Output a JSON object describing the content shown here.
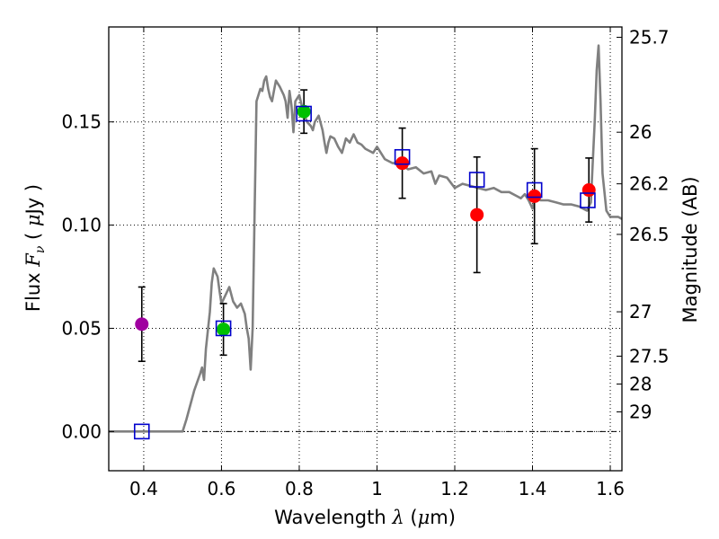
{
  "chart_data": {
    "type": "line",
    "title": "",
    "xlabel": "Wavelength",
    "xlabel_symbol": "λ",
    "xlabel_unit_open": "(",
    "xlabel_unit_mu": "μ",
    "xlabel_unit_rest": "m)",
    "ylabel": "Flux",
    "ylabel_symbol_main": "F",
    "ylabel_symbol_sub": "ν",
    "ylabel_unit_open": "(",
    "ylabel_unit_mu": "μ",
    "ylabel_unit_rest": "Jy",
    "ylabel_unit_close": ")",
    "right_ylabel": "Magnitude (AB)",
    "xlim": [
      0.31,
      1.63
    ],
    "ylim": [
      -0.019,
      0.196
    ],
    "grid": true,
    "x_ticks": [
      0.4,
      0.6,
      0.8,
      1.0,
      1.2,
      1.4,
      1.6
    ],
    "x_tick_labels": [
      "0.4",
      "0.6",
      "0.8",
      "1",
      "1.2",
      "1.4",
      "1.6"
    ],
    "y_ticks": [
      0.0,
      0.05,
      0.1,
      0.15
    ],
    "y_tick_labels": [
      "0.00",
      "0.05",
      "0.10",
      "0.15"
    ],
    "right_ticks": [
      {
        "flux": 0.191,
        "label": "25.7"
      },
      {
        "flux": 0.145,
        "label": "26"
      },
      {
        "flux": 0.12,
        "label": "26.2"
      },
      {
        "flux": 0.0955,
        "label": "26.5"
      },
      {
        "flux": 0.058,
        "label": "27"
      },
      {
        "flux": 0.0365,
        "label": "27.5"
      },
      {
        "flux": 0.023,
        "label": "28"
      },
      {
        "flux": 0.0095,
        "label": "29"
      }
    ],
    "zero_line": 0.0,
    "colors": {
      "model": "#808080",
      "model_bands": "#0000cc",
      "violet": "#a000a0",
      "green": "#00c000",
      "red": "#ff0000",
      "errorbar": "#000000"
    },
    "model_spectrum": {
      "x": [
        0.31,
        0.5,
        0.51,
        0.53,
        0.545,
        0.55,
        0.555,
        0.56,
        0.57,
        0.575,
        0.58,
        0.59,
        0.595,
        0.6,
        0.61,
        0.62,
        0.63,
        0.64,
        0.65,
        0.66,
        0.665,
        0.67,
        0.675,
        0.68,
        0.69,
        0.7,
        0.705,
        0.71,
        0.715,
        0.72,
        0.725,
        0.73,
        0.735,
        0.74,
        0.75,
        0.76,
        0.765,
        0.77,
        0.775,
        0.78,
        0.785,
        0.79,
        0.8,
        0.81,
        0.82,
        0.83,
        0.835,
        0.84,
        0.85,
        0.86,
        0.865,
        0.87,
        0.875,
        0.88,
        0.89,
        0.9,
        0.91,
        0.92,
        0.93,
        0.94,
        0.95,
        0.96,
        0.97,
        0.98,
        0.99,
        1.0,
        1.02,
        1.04,
        1.06,
        1.08,
        1.1,
        1.12,
        1.14,
        1.15,
        1.16,
        1.18,
        1.2,
        1.22,
        1.24,
        1.26,
        1.28,
        1.3,
        1.32,
        1.34,
        1.36,
        1.37,
        1.38,
        1.39,
        1.4,
        1.41,
        1.42,
        1.44,
        1.46,
        1.48,
        1.5,
        1.52,
        1.53,
        1.54,
        1.55,
        1.56,
        1.565,
        1.57,
        1.575,
        1.58,
        1.59,
        1.6,
        1.62,
        1.63
      ],
      "y": [
        0.0,
        0.0,
        0.006,
        0.02,
        0.028,
        0.031,
        0.025,
        0.04,
        0.058,
        0.072,
        0.079,
        0.075,
        0.068,
        0.062,
        0.066,
        0.07,
        0.063,
        0.06,
        0.062,
        0.057,
        0.05,
        0.045,
        0.03,
        0.05,
        0.16,
        0.166,
        0.165,
        0.17,
        0.172,
        0.166,
        0.162,
        0.16,
        0.165,
        0.17,
        0.167,
        0.163,
        0.16,
        0.152,
        0.165,
        0.158,
        0.145,
        0.16,
        0.163,
        0.155,
        0.15,
        0.148,
        0.146,
        0.15,
        0.153,
        0.146,
        0.14,
        0.135,
        0.14,
        0.143,
        0.142,
        0.138,
        0.135,
        0.142,
        0.14,
        0.144,
        0.14,
        0.139,
        0.137,
        0.136,
        0.135,
        0.138,
        0.132,
        0.13,
        0.13,
        0.127,
        0.128,
        0.125,
        0.126,
        0.12,
        0.124,
        0.123,
        0.118,
        0.12,
        0.119,
        0.118,
        0.117,
        0.118,
        0.116,
        0.116,
        0.114,
        0.113,
        0.115,
        0.112,
        0.108,
        0.116,
        0.112,
        0.112,
        0.111,
        0.11,
        0.11,
        0.109,
        0.108,
        0.107,
        0.111,
        0.15,
        0.175,
        0.187,
        0.16,
        0.125,
        0.107,
        0.104,
        0.104,
        0.103
      ]
    },
    "model_band_fluxes": [
      {
        "x": 0.395,
        "y": 0.0
      },
      {
        "x": 0.605,
        "y": 0.05
      },
      {
        "x": 0.812,
        "y": 0.154
      },
      {
        "x": 1.065,
        "y": 0.133
      },
      {
        "x": 1.257,
        "y": 0.122
      },
      {
        "x": 1.405,
        "y": 0.117
      },
      {
        "x": 1.542,
        "y": 0.112
      }
    ],
    "observed": [
      {
        "x": 0.395,
        "y": 0.052,
        "yerr": 0.018,
        "color": "violet"
      },
      {
        "x": 0.605,
        "y": 0.0495,
        "yerr": 0.0125,
        "color": "green"
      },
      {
        "x": 0.812,
        "y": 0.155,
        "yerr": 0.0105,
        "color": "green"
      },
      {
        "x": 1.065,
        "y": 0.13,
        "yerr": 0.017,
        "color": "red"
      },
      {
        "x": 1.257,
        "y": 0.105,
        "yerr": 0.028,
        "color": "red"
      },
      {
        "x": 1.405,
        "y": 0.114,
        "yerr": 0.023,
        "color": "red"
      },
      {
        "x": 1.545,
        "y": 0.117,
        "yerr": 0.0155,
        "color": "red"
      }
    ]
  }
}
